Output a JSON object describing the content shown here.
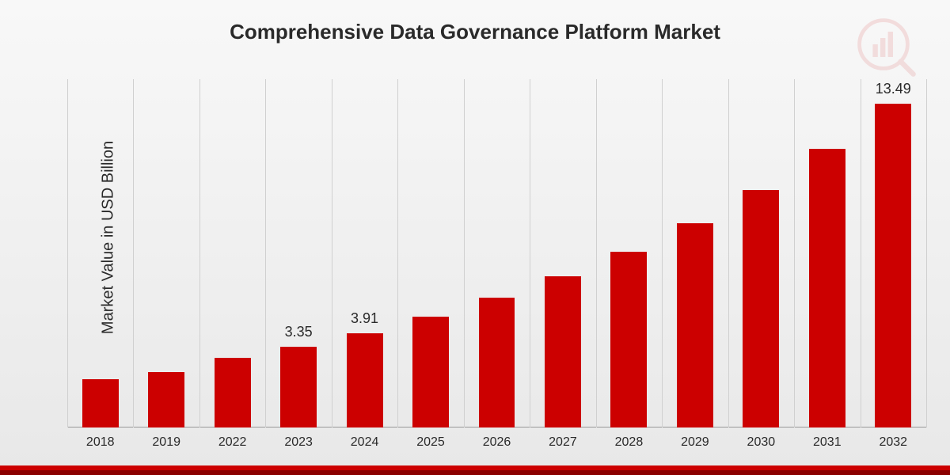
{
  "chart": {
    "title": "Comprehensive Data Governance Platform Market",
    "y_axis_label": "Market Value in USD Billion",
    "type": "bar",
    "bar_color": "#cc0000",
    "background_gradient_from": "#f8f8f8",
    "background_gradient_to": "#e8e8e8",
    "grid_color": "#d0d0d0",
    "title_fontsize": 26,
    "axis_label_fontsize": 20,
    "value_label_fontsize": 18,
    "tick_label_fontsize": 16,
    "y_max": 14.5,
    "bar_width_ratio": 0.55,
    "categories": [
      "2018",
      "2019",
      "2022",
      "2023",
      "2024",
      "2025",
      "2026",
      "2027",
      "2028",
      "2029",
      "2030",
      "2031",
      "2032"
    ],
    "values": [
      2.0,
      2.3,
      2.9,
      3.35,
      3.91,
      4.6,
      5.4,
      6.3,
      7.3,
      8.5,
      9.9,
      11.6,
      13.49
    ],
    "labeled_indices": [
      3,
      4,
      12
    ],
    "labels": {
      "3": "3.35",
      "4": "3.91",
      "12": "13.49"
    },
    "bottom_bar_color": "#cc0000",
    "bottom_bar_dark_color": "#8a0000"
  }
}
